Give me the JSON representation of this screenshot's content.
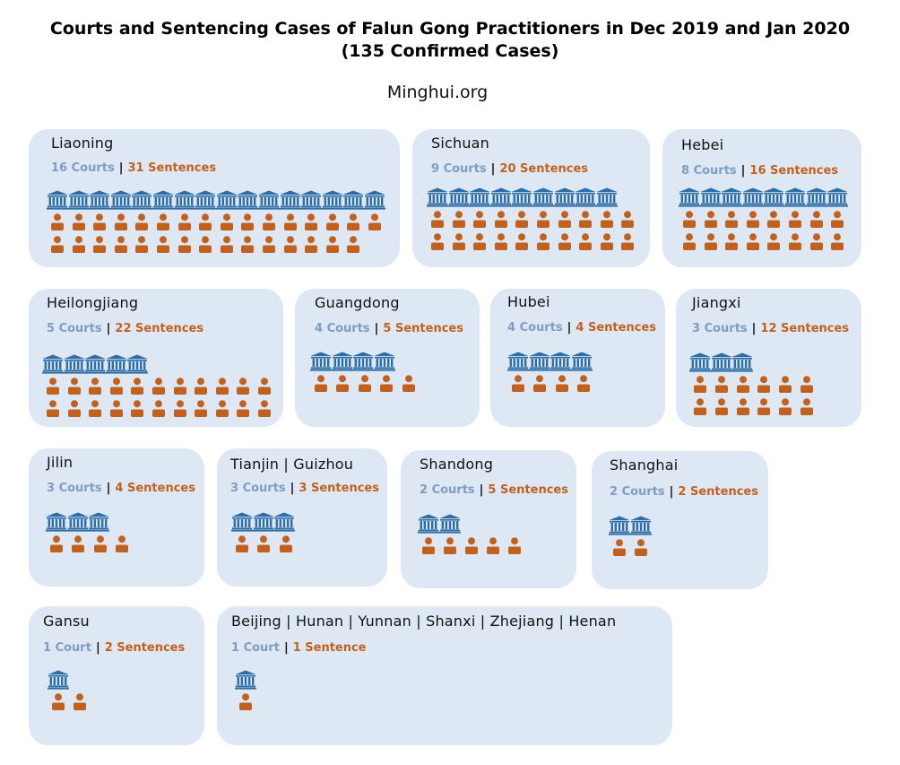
{
  "title": {
    "line1": "Courts and Sentencing Cases of Falun Gong Practitioners in Dec 2019 and Jan 2020",
    "line2": "(135 Confirmed Cases)"
  },
  "source": "Minghui.org",
  "colors": {
    "court": "#2e6ea6",
    "person": "#c2611e",
    "card": "#dde8f4",
    "courts_text": "#7f9dc1"
  },
  "icons": {
    "court": "courthouse-icon",
    "person": "person-icon"
  },
  "separator": "|",
  "regions": [
    {
      "name": "Liaoning",
      "courts_label": "16 Courts",
      "sentences_label": "31 Sentences",
      "courts": 16,
      "sentences": 31
    },
    {
      "name": "Sichuan",
      "courts_label": "9 Courts",
      "sentences_label": "20 Sentences",
      "courts": 9,
      "sentences": 20
    },
    {
      "name": "Hebei",
      "courts_label": "8 Courts",
      "sentences_label": "16 Sentences",
      "courts": 8,
      "sentences": 16
    },
    {
      "name": "Heilongjiang",
      "courts_label": "5 Courts",
      "sentences_label": "22 Sentences",
      "courts": 5,
      "sentences": 22
    },
    {
      "name": "Guangdong",
      "courts_label": "4 Courts",
      "sentences_label": "5 Sentences",
      "courts": 4,
      "sentences": 5
    },
    {
      "name": "Hubei",
      "courts_label": "4 Courts",
      "sentences_label": "4 Sentences",
      "courts": 4,
      "sentences": 4
    },
    {
      "name": "Jiangxi",
      "courts_label": "3 Courts",
      "sentences_label": "12 Sentences",
      "courts": 3,
      "sentences": 12
    },
    {
      "name": "Jilin",
      "courts_label": "3 Courts",
      "sentences_label": "4 Sentences",
      "courts": 3,
      "sentences": 4
    },
    {
      "name": "Tianjin | Guizhou",
      "courts_label": "3 Courts",
      "sentences_label": "3 Sentences",
      "courts": 3,
      "sentences": 3
    },
    {
      "name": "Shandong",
      "courts_label": "2 Courts",
      "sentences_label": "5 Sentences",
      "courts": 2,
      "sentences": 5
    },
    {
      "name": "Shanghai",
      "courts_label": "2 Courts",
      "sentences_label": "2 Sentences",
      "courts": 2,
      "sentences": 2
    },
    {
      "name": "Gansu",
      "courts_label": "1 Court",
      "sentences_label": "2 Sentences",
      "courts": 1,
      "sentences": 2
    },
    {
      "name": "Beijing | Hunan | Yunnan | Shanxi | Zhejiang | Henan",
      "courts_label": "1 Court",
      "sentences_label": "1 Sentence",
      "courts": 1,
      "sentences": 1
    }
  ]
}
